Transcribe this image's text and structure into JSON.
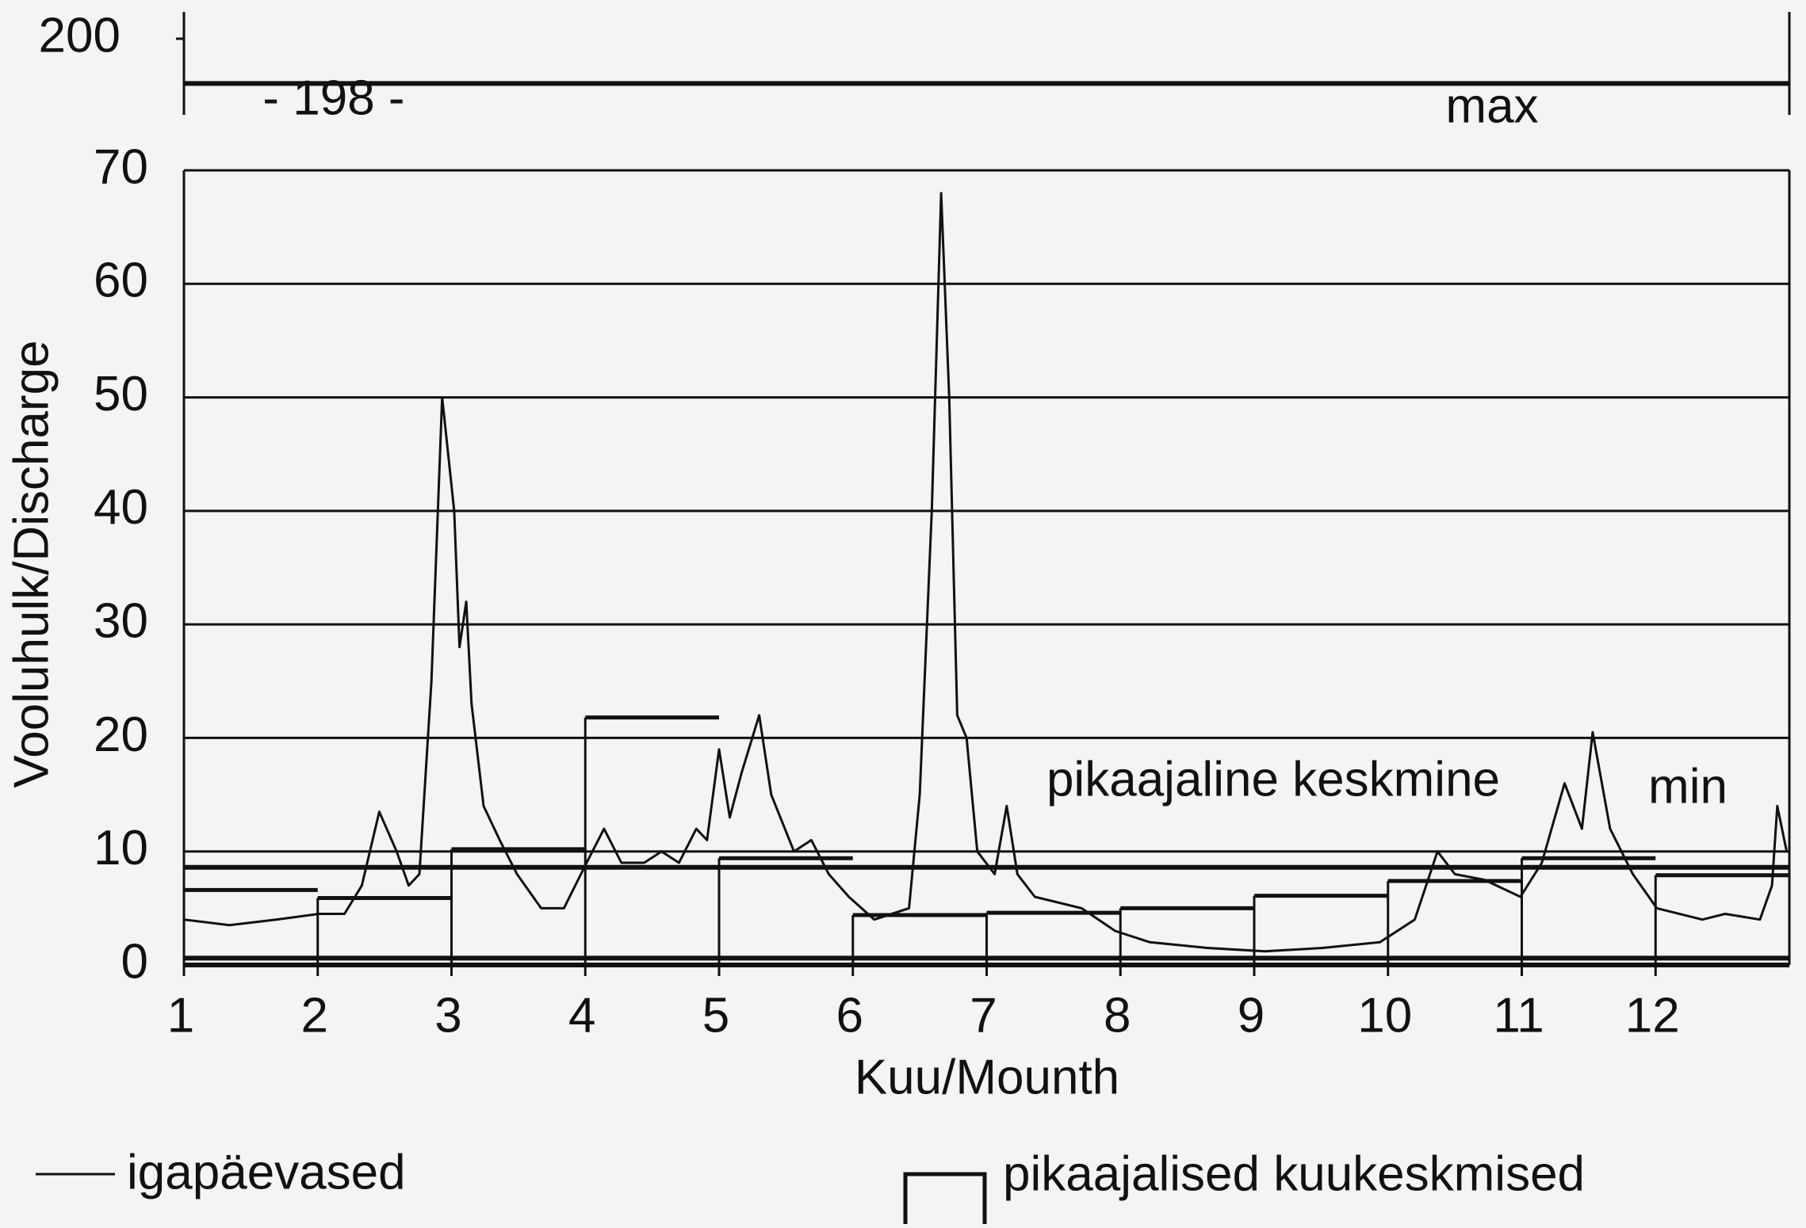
{
  "chart_data": {
    "type": "line",
    "x_label": "Kuu/Mounth",
    "y_label": "Vooluhulk/Discharge",
    "xlim": [
      1,
      13
    ],
    "xticks": [
      1,
      2,
      3,
      4,
      5,
      6,
      7,
      8,
      9,
      10,
      11,
      12
    ],
    "ylim": [
      0,
      70
    ],
    "yticks": [
      0,
      10,
      20,
      30,
      40,
      50,
      60,
      70
    ],
    "grid": true,
    "series": [
      {
        "name": "igapäevased",
        "color": "#111111",
        "x": [
          1.0,
          1.34,
          1.69,
          2.01,
          2.2,
          2.33,
          2.46,
          2.59,
          2.68,
          2.76,
          2.85,
          2.93,
          3.02,
          3.06,
          3.11,
          3.15,
          3.24,
          3.36,
          3.49,
          3.67,
          3.84,
          4.01,
          4.14,
          4.27,
          4.44,
          4.57,
          4.7,
          4.83,
          4.91,
          5.0,
          5.08,
          5.17,
          5.3,
          5.39,
          5.56,
          5.69,
          5.82,
          5.97,
          6.16,
          6.42,
          6.5,
          6.59,
          6.66,
          6.72,
          6.78,
          6.85,
          6.93,
          7.06,
          7.15,
          7.23,
          7.36,
          7.71,
          7.96,
          8.22,
          8.65,
          9.08,
          9.51,
          9.94,
          10.2,
          10.37,
          10.5,
          10.72,
          10.99,
          11.15,
          11.32,
          11.45,
          11.53,
          11.66,
          11.83,
          12.01,
          12.35,
          12.52,
          12.78,
          12.87,
          12.91,
          12.98
        ],
        "values": [
          4,
          3.5,
          4,
          4.5,
          4.5,
          7,
          13.5,
          10,
          7,
          8,
          25,
          50,
          40,
          28,
          32,
          23,
          14,
          11,
          8,
          5,
          5,
          9,
          12,
          9,
          9,
          10,
          9,
          12,
          11,
          19,
          13,
          17,
          22,
          15,
          10,
          11,
          8,
          6,
          4,
          5,
          15,
          40,
          68,
          50,
          22,
          20,
          10,
          8,
          14,
          8,
          6,
          5,
          3,
          2,
          1.5,
          1.2,
          1.5,
          2,
          4,
          10,
          8,
          7.5,
          6,
          9,
          16,
          12,
          20.5,
          12,
          8,
          5,
          4,
          4.5,
          4,
          7,
          14,
          10
        ]
      },
      {
        "name": "pikaajalised kuukeskmised",
        "color": "#111111",
        "style": "step",
        "values": [
          6.6,
          5.9,
          10.2,
          21.8,
          9.4,
          4.4,
          4.6,
          5.0,
          6.1,
          7.4,
          9.4,
          7.9
        ]
      }
    ],
    "reference_lines": [
      {
        "label": "pikaajaline keskmine",
        "value": 8.6
      },
      {
        "label": "min",
        "value": 0.6
      }
    ],
    "top_panel": {
      "ylim": [
        196.6,
        201.2
      ],
      "yticks": [
        200
      ],
      "max": {
        "value": 198,
        "label": "- 198 -",
        "name": "max"
      }
    }
  }
}
